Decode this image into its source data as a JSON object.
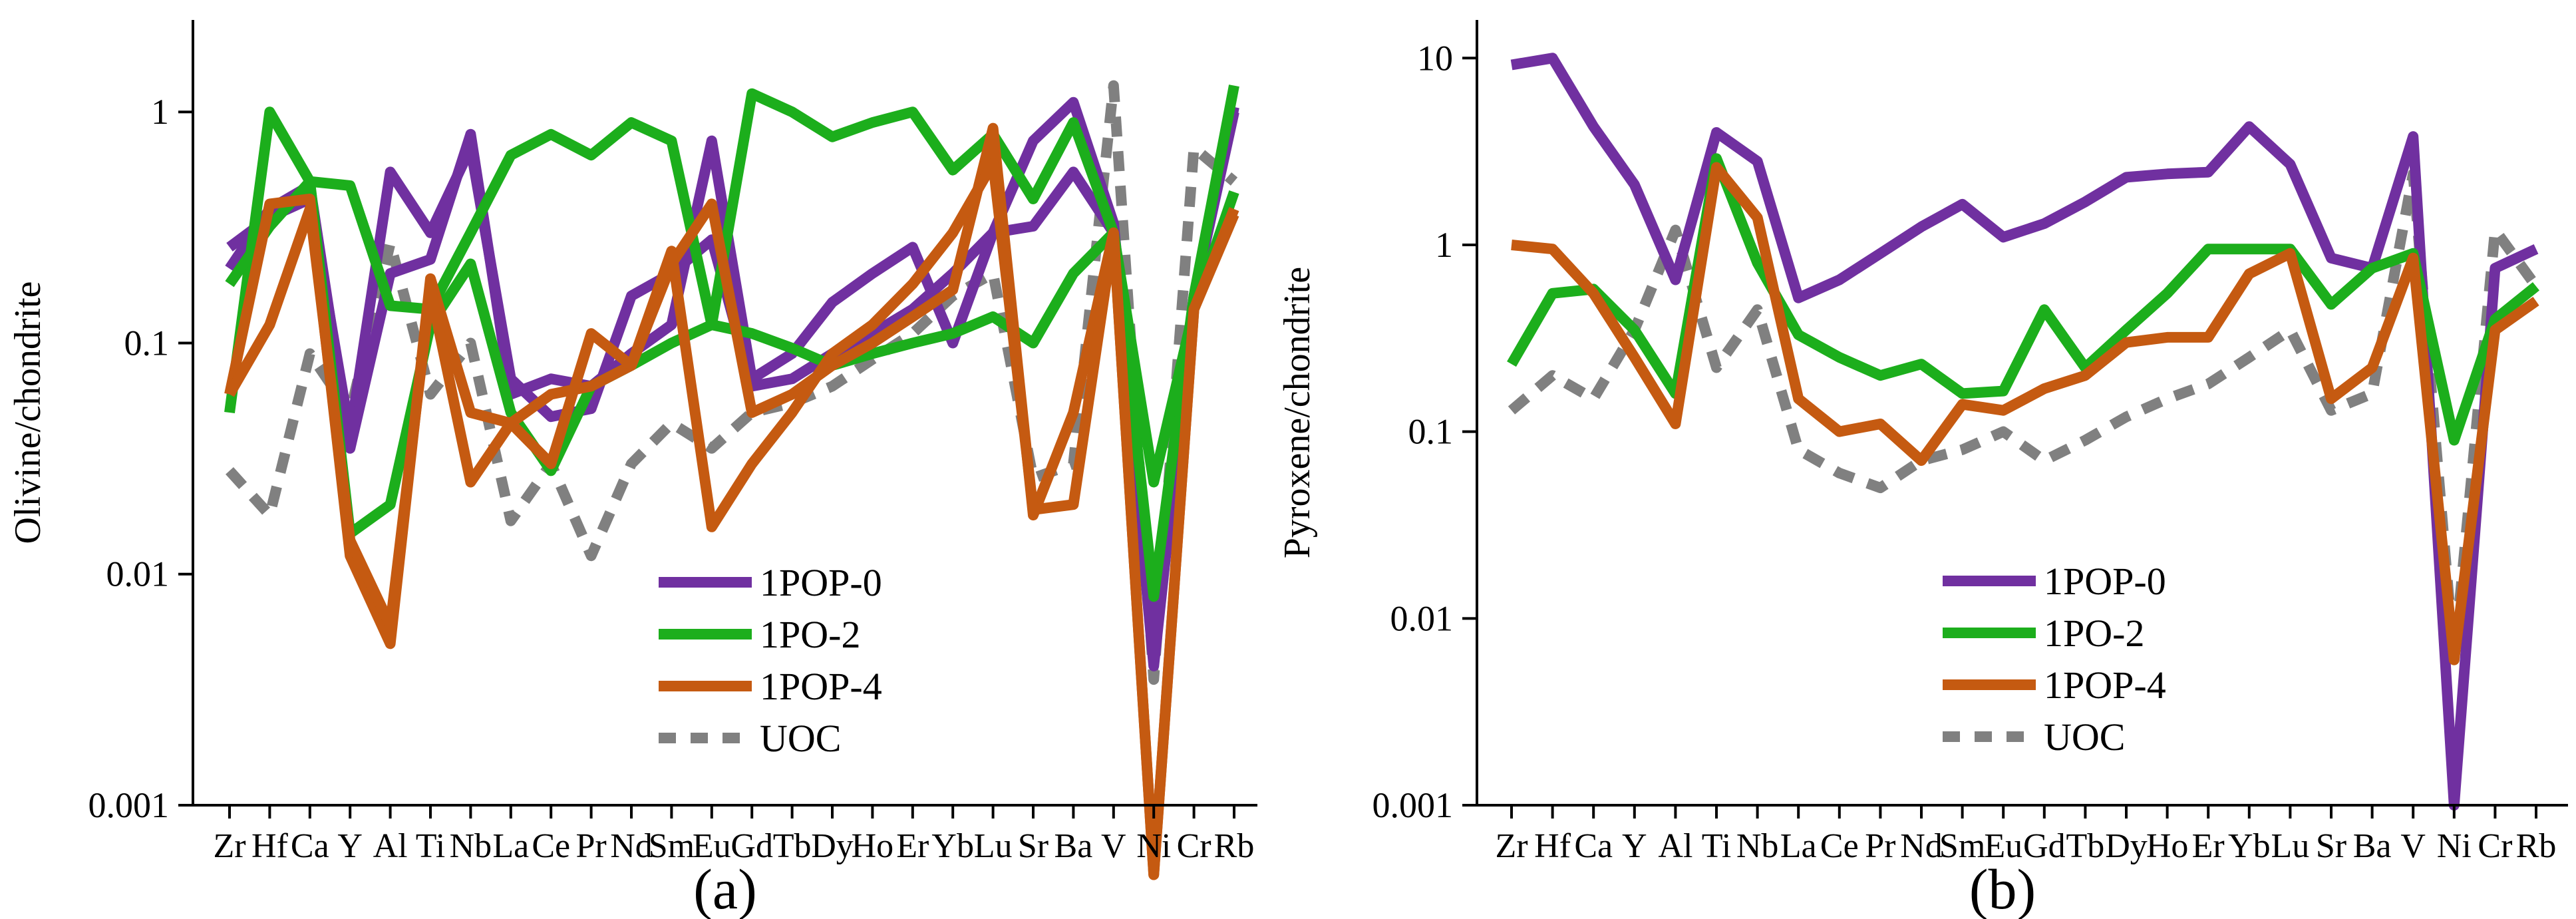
{
  "chart_data": [
    {
      "type": "line",
      "panel_label": "(a)",
      "ylabel": "Olivine/chondrite",
      "yscale": "log",
      "ylim": [
        0.001,
        2.5
      ],
      "yticks": [
        0.001,
        0.01,
        0.1,
        1
      ],
      "ytick_labels": [
        "0.001",
        "0.01",
        "0.1",
        "1"
      ],
      "categories": [
        "Zr",
        "Hf",
        "Ca",
        "Y",
        "Al",
        "Ti",
        "Nb",
        "La",
        "Ce",
        "Pr",
        "Nd",
        "Sm",
        "Eu",
        "Gd",
        "Tb",
        "Dy",
        "Ho",
        "Er",
        "Yb",
        "Lu",
        "Sr",
        "Ba",
        "V",
        "Ni",
        "Cr",
        "Rb"
      ],
      "legend_position": "lower-center",
      "series": [
        {
          "name": "1POP-0",
          "color": "#7030a0",
          "dash": false,
          "values": [
            0.26,
            0.35,
            0.42,
            0.04,
            0.55,
            0.3,
            0.7,
            0.07,
            0.048,
            0.052,
            0.16,
            0.2,
            0.28,
            0.065,
            0.07,
            0.09,
            0.11,
            0.14,
            0.2,
            0.3,
            0.32,
            0.55,
            0.3,
            0.004,
            0.16,
            1.0
          ]
        },
        {
          "name": "1POP-0",
          "color": "#7030a0",
          "dash": false,
          "values": [
            0.21,
            0.38,
            0.48,
            0.035,
            0.2,
            0.23,
            0.8,
            0.06,
            0.07,
            0.065,
            0.09,
            0.12,
            0.75,
            0.07,
            0.09,
            0.15,
            0.2,
            0.26,
            0.1,
            0.3,
            0.75,
            1.1,
            0.33,
            0.006,
            0.16,
            1.05
          ]
        },
        {
          "name": "1PO-2",
          "color": "#1cae1c",
          "dash": false,
          "values": [
            0.05,
            1.0,
            0.5,
            0.48,
            0.145,
            0.14,
            0.3,
            0.65,
            0.8,
            0.65,
            0.9,
            0.75,
            0.12,
            1.2,
            1.0,
            0.78,
            0.9,
            1.0,
            0.56,
            0.8,
            0.42,
            0.9,
            0.3,
            0.008,
            0.16,
            1.3
          ]
        },
        {
          "name": "1PO-2",
          "color": "#1cae1c",
          "dash": false,
          "values": [
            0.18,
            0.32,
            0.5,
            0.015,
            0.02,
            0.12,
            0.22,
            0.05,
            0.028,
            0.065,
            0.08,
            0.1,
            0.12,
            0.11,
            0.095,
            0.08,
            0.09,
            0.1,
            0.11,
            0.13,
            0.1,
            0.2,
            0.3,
            0.025,
            0.14,
            0.45
          ]
        },
        {
          "name": "1POP-4",
          "color": "#c55a11",
          "dash": false,
          "values": [
            0.06,
            0.4,
            0.42,
            0.012,
            0.005,
            0.19,
            0.05,
            0.045,
            0.06,
            0.065,
            0.08,
            0.22,
            0.4,
            0.05,
            0.06,
            0.08,
            0.1,
            0.13,
            0.17,
            0.85,
            0.018,
            0.05,
            0.3,
            0.0005,
            0.14,
            0.38
          ]
        },
        {
          "name": "1POP-4",
          "color": "#c55a11",
          "dash": false,
          "values": [
            0.06,
            0.12,
            0.38,
            0.014,
            0.006,
            0.17,
            0.025,
            0.045,
            0.03,
            0.11,
            0.08,
            0.25,
            0.016,
            0.03,
            0.05,
            0.09,
            0.12,
            0.18,
            0.3,
            0.6,
            0.019,
            0.02,
            0.3,
            0.0005,
            0.14,
            0.36
          ]
        },
        {
          "name": "UOC",
          "color": "#808080",
          "dash": true,
          "values": [
            0.028,
            0.018,
            0.09,
            0.05,
            0.27,
            0.06,
            0.1,
            0.017,
            0.03,
            0.012,
            0.03,
            0.045,
            0.035,
            0.05,
            0.055,
            0.065,
            0.085,
            0.11,
            0.16,
            0.2,
            0.026,
            0.03,
            1.3,
            0.0035,
            0.7,
            0.5
          ]
        }
      ]
    },
    {
      "type": "line",
      "panel_label": "(b)",
      "ylabel": "Pyroxene/chondrite",
      "yscale": "log",
      "ylim": [
        0.001,
        16
      ],
      "yticks": [
        0.001,
        0.01,
        0.1,
        1,
        10
      ],
      "ytick_labels": [
        "0.001",
        "0.01",
        "0.1",
        "1",
        "10"
      ],
      "categories": [
        "Zr",
        "Hf",
        "Ca",
        "Y",
        "Al",
        "Ti",
        "Nb",
        "La",
        "Ce",
        "Pr",
        "Nd",
        "Sm",
        "Eu",
        "Gd",
        "Tb",
        "Dy",
        "Ho",
        "Er",
        "Yb",
        "Lu",
        "Sr",
        "Ba",
        "V",
        "Ni",
        "Cr",
        "Rb"
      ],
      "legend_position": "lower-center",
      "series": [
        {
          "name": "1POP-0",
          "color": "#7030a0",
          "dash": false,
          "values": [
            9.2,
            10.0,
            4.3,
            2.1,
            0.65,
            4.0,
            2.8,
            0.52,
            0.65,
            0.9,
            1.25,
            1.65,
            1.1,
            1.3,
            1.7,
            2.3,
            2.4,
            2.45,
            4.3,
            2.7,
            0.85,
            0.75,
            3.8,
            0.001,
            0.75,
            0.95
          ]
        },
        {
          "name": "1PO-2",
          "color": "#1cae1c",
          "dash": false,
          "values": [
            0.23,
            0.55,
            0.58,
            0.35,
            0.16,
            2.9,
            0.8,
            0.33,
            0.25,
            0.2,
            0.23,
            0.16,
            0.165,
            0.45,
            0.22,
            0.35,
            0.55,
            0.95,
            0.95,
            0.95,
            0.48,
            0.75,
            0.9,
            0.09,
            0.4,
            0.6
          ]
        },
        {
          "name": "1POP-4",
          "color": "#c55a11",
          "dash": false,
          "values": [
            1.0,
            0.95,
            0.55,
            0.25,
            0.11,
            2.6,
            1.4,
            0.15,
            0.1,
            0.11,
            0.07,
            0.14,
            0.13,
            0.17,
            0.2,
            0.3,
            0.32,
            0.32,
            0.7,
            0.9,
            0.15,
            0.22,
            0.85,
            0.006,
            0.35,
            0.5
          ]
        },
        {
          "name": "UOC",
          "color": "#808080",
          "dash": true,
          "values": [
            0.13,
            0.2,
            0.15,
            0.35,
            1.2,
            0.22,
            0.45,
            0.08,
            0.06,
            0.05,
            0.07,
            0.08,
            0.1,
            0.07,
            0.09,
            0.12,
            0.15,
            0.18,
            0.25,
            0.35,
            0.13,
            0.16,
            2.4,
            0.006,
            1.2,
            0.6
          ]
        }
      ]
    }
  ]
}
